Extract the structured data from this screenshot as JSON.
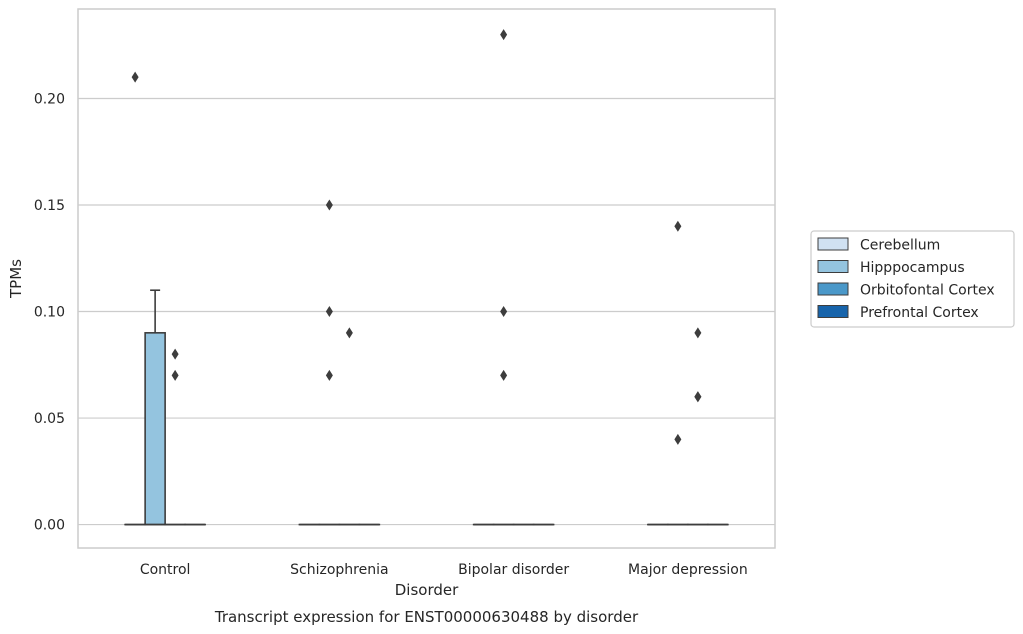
{
  "chart_data": {
    "type": "box",
    "title": "",
    "caption": "Transcript expression for ENST00000630488 by disorder",
    "xlabel": "Disorder",
    "ylabel": "TPMs",
    "ylim": [
      -0.011,
      0.242
    ],
    "yticks": [
      "0.00",
      "0.05",
      "0.10",
      "0.15",
      "0.20"
    ],
    "grid": "horizontal",
    "legend_position": "right",
    "categories": [
      "Control",
      "Schizophrenia",
      "Bipolar disorder",
      "Major depression"
    ],
    "series": [
      {
        "name": "Cerebellum",
        "color": "#d0e1f2",
        "boxes": [
          {
            "q1": 0,
            "median": 0,
            "q3": 0,
            "whisker_low": 0,
            "whisker_high": 0,
            "outliers": [
              0.21
            ]
          },
          {
            "q1": 0,
            "median": 0,
            "q3": 0,
            "whisker_low": 0,
            "whisker_high": 0,
            "outliers": []
          },
          {
            "q1": 0,
            "median": 0,
            "q3": 0,
            "whisker_low": 0,
            "whisker_high": 0,
            "outliers": []
          },
          {
            "q1": 0,
            "median": 0,
            "q3": 0,
            "whisker_low": 0,
            "whisker_high": 0,
            "outliers": []
          }
        ]
      },
      {
        "name": "Hipppocampus",
        "color": "#94c4df",
        "boxes": [
          {
            "q1": 0,
            "median": 0,
            "q3": 0.09,
            "whisker_low": 0,
            "whisker_high": 0.11,
            "outliers": []
          },
          {
            "q1": 0,
            "median": 0,
            "q3": 0,
            "whisker_low": 0,
            "whisker_high": 0,
            "outliers": [
              0.15,
              0.1,
              0.07
            ]
          },
          {
            "q1": 0,
            "median": 0,
            "q3": 0,
            "whisker_low": 0,
            "whisker_high": 0,
            "outliers": [
              0.23,
              0.1,
              0.07
            ]
          },
          {
            "q1": 0,
            "median": 0,
            "q3": 0,
            "whisker_low": 0,
            "whisker_high": 0,
            "outliers": [
              0.14,
              0.04
            ]
          }
        ]
      },
      {
        "name": "Orbitofontal Cortex",
        "color": "#4a98c9",
        "boxes": [
          {
            "q1": 0,
            "median": 0,
            "q3": 0,
            "whisker_low": 0,
            "whisker_high": 0,
            "outliers": [
              0.08,
              0.07
            ]
          },
          {
            "q1": 0,
            "median": 0,
            "q3": 0,
            "whisker_low": 0,
            "whisker_high": 0,
            "outliers": [
              0.09
            ]
          },
          {
            "q1": 0,
            "median": 0,
            "q3": 0,
            "whisker_low": 0,
            "whisker_high": 0,
            "outliers": []
          },
          {
            "q1": 0,
            "median": 0,
            "q3": 0,
            "whisker_low": 0,
            "whisker_high": 0,
            "outliers": [
              0.09,
              0.06,
              0.06
            ]
          }
        ]
      },
      {
        "name": "Prefrontal Cortex",
        "color": "#1764ab",
        "boxes": [
          {
            "q1": 0,
            "median": 0,
            "q3": 0,
            "whisker_low": 0,
            "whisker_high": 0,
            "outliers": []
          },
          {
            "q1": 0,
            "median": 0,
            "q3": 0,
            "whisker_low": 0,
            "whisker_high": 0,
            "outliers": []
          },
          {
            "q1": 0,
            "median": 0,
            "q3": 0,
            "whisker_low": 0,
            "whisker_high": 0,
            "outliers": []
          },
          {
            "q1": 0,
            "median": 0,
            "q3": 0,
            "whisker_low": 0,
            "whisker_high": 0,
            "outliers": []
          }
        ]
      }
    ],
    "extra_outliers": [
      {
        "category_index": 1,
        "series_index": 0,
        "values": []
      }
    ]
  },
  "colors": {
    "grid": "#cccccc",
    "frame": "#cccccc",
    "box_edge": "#3d3d3d",
    "marker": "#3d3d3d",
    "text": "#262626",
    "legend_border": "#cccccc"
  }
}
